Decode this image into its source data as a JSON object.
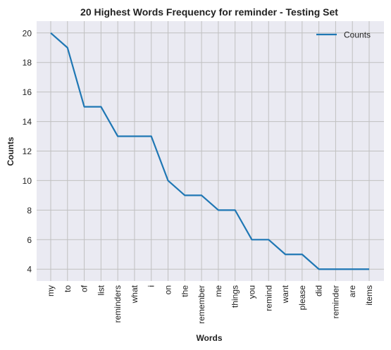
{
  "chart_data": {
    "type": "line",
    "title": "20 Highest Words Frequency for reminder - Testing Set",
    "xlabel": "Words",
    "ylabel": "Counts",
    "categories": [
      "my",
      "to",
      "of",
      "list",
      "reminders",
      "what",
      "i",
      "on",
      "the",
      "remember",
      "me",
      "things",
      "you",
      "remind",
      "want",
      "please",
      "did",
      "reminder",
      "are",
      "items"
    ],
    "series": [
      {
        "name": "Counts",
        "values": [
          20,
          19,
          15,
          15,
          13,
          13,
          13,
          10,
          9,
          9,
          8,
          8,
          6,
          6,
          5,
          5,
          4,
          4,
          4,
          4
        ],
        "color": "#1f77b4"
      }
    ],
    "ylim": [
      3.2,
      20.8
    ],
    "yticks": [
      4,
      6,
      8,
      10,
      12,
      14,
      16,
      18,
      20
    ],
    "grid": true,
    "legend": "top-right",
    "background": "#eaeaf2",
    "grid_color": "#c0c0c0"
  }
}
